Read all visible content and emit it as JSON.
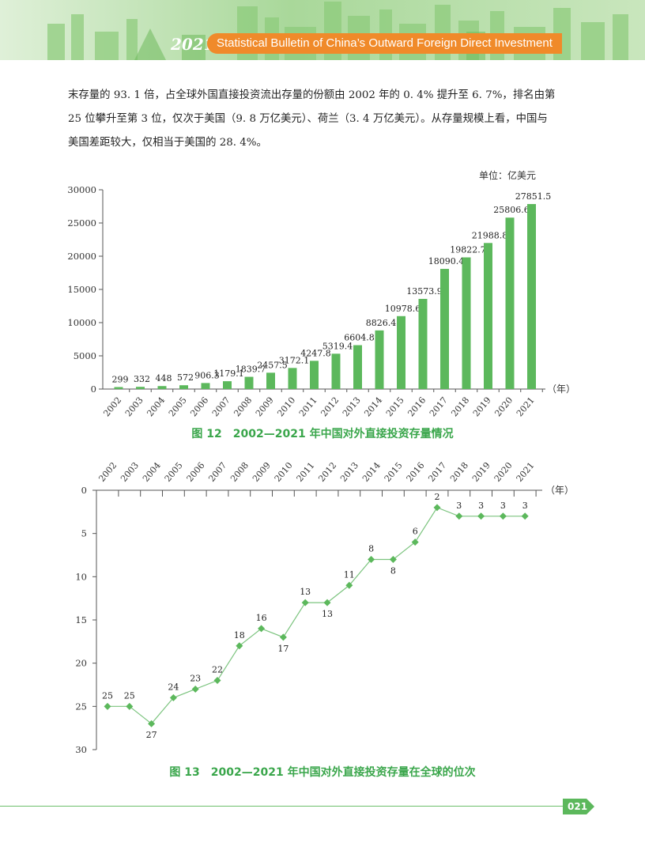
{
  "header": {
    "year": "2021",
    "title": "Statistical Bulletin of China’s Outward Foreign Direct Investment"
  },
  "intro": {
    "lines": [
      "末存量的 93. 1 倍，占全球外国直接投资流出存量的份额由 2002 年的 0. 4% 提升至 6. 7%，排名由第",
      "25 位攀升至第 3 位，仅次于美国（9. 8 万亿美元）、荷兰（3. 4 万亿美元）。从存量规模上看，中国与",
      "美国差距较大，仅相当于美国的 28. 4%。"
    ]
  },
  "chart_data": [
    {
      "type": "bar",
      "unit_label": "单位：亿美元",
      "x_unit": "（年）",
      "title": "图 12　2002—2021 年中国对外直接投资存量情况",
      "categories": [
        "2002",
        "2003",
        "2004",
        "2005",
        "2006",
        "2007",
        "2008",
        "2009",
        "2010",
        "2011",
        "2012",
        "2013",
        "2014",
        "2015",
        "2016",
        "2017",
        "2018",
        "2019",
        "2020",
        "2021"
      ],
      "values": [
        299,
        332,
        448,
        572,
        906.3,
        1179.1,
        1839.7,
        2457.5,
        3172.1,
        4247.8,
        5319.4,
        6604.8,
        8826.4,
        10978.6,
        13573.9,
        18090.4,
        19822.7,
        21988.8,
        25806.6,
        27851.5
      ],
      "value_labels": [
        "299",
        "332",
        "448",
        "572",
        "906.3",
        "1179.1",
        "1839.7",
        "2457.5",
        "3172.1",
        "4247.8",
        "5319.4",
        "6604.8",
        "8826.4",
        "10978.6",
        "13573.9",
        "18090.4",
        "19822.7",
        "21988.8",
        "25806.6",
        "27851.5"
      ],
      "yticks": [
        "0",
        "5000",
        "10000",
        "15000",
        "20000",
        "25000",
        "30000"
      ],
      "ylim": [
        0,
        30000
      ],
      "color": "#5cb85c"
    },
    {
      "type": "line",
      "x_unit": "（年）",
      "title": "图 13　2002—2021 年中国对外直接投资存量在全球的位次",
      "categories": [
        "2002",
        "2003",
        "2004",
        "2005",
        "2006",
        "2007",
        "2008",
        "2009",
        "2010",
        "2011",
        "2012",
        "2013",
        "2014",
        "2015",
        "2016",
        "2017",
        "2018",
        "2019",
        "2020",
        "2021"
      ],
      "values": [
        25,
        25,
        27,
        24,
        23,
        22,
        18,
        16,
        17,
        13,
        13,
        11,
        8,
        8,
        6,
        2,
        3,
        3,
        3,
        3
      ],
      "yticks": [
        "0",
        "5",
        "10",
        "15",
        "20",
        "25",
        "30"
      ],
      "ylim": [
        0,
        30
      ],
      "y_inverted": true,
      "marker": "diamond",
      "color": "#5cb85c"
    }
  ],
  "footer": {
    "page": "021"
  }
}
